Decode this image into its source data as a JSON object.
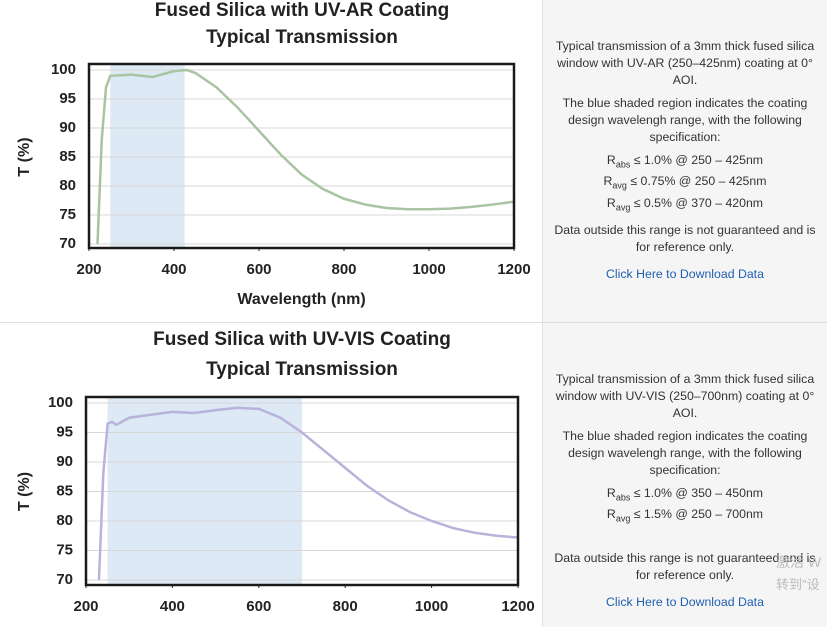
{
  "chart_data": [
    {
      "type": "line",
      "title": "Fused Silica with UV-AR Coating",
      "subtitle": "Typical Transmission",
      "y_label": "T (%)",
      "x_label": "Wavelength (nm)",
      "x": [
        220,
        230,
        240,
        250,
        300,
        350,
        400,
        430,
        450,
        500,
        550,
        600,
        650,
        700,
        750,
        800,
        850,
        900,
        950,
        1000,
        1050,
        1100,
        1150,
        1200
      ],
      "values": [
        70,
        88,
        97,
        99,
        99.2,
        98.8,
        99.8,
        100,
        99.5,
        97,
        93.5,
        89.5,
        85.5,
        82,
        79.5,
        77.8,
        76.8,
        76.2,
        76,
        76,
        76.1,
        76.4,
        76.8,
        77.3
      ],
      "color": "#a9c4a3",
      "shaded_region": [
        250,
        425
      ],
      "shade_color": "#dde9f5",
      "xlim": [
        200,
        1200
      ],
      "ylim": [
        70,
        100
      ],
      "xticks": [
        200,
        400,
        600,
        800,
        1000,
        1200
      ],
      "yticks": [
        70,
        75,
        80,
        85,
        90,
        95,
        100
      ],
      "grid": true
    },
    {
      "type": "line",
      "title": "Fused Silica with UV-VIS Coating",
      "subtitle": "Typical Transmission",
      "y_label": "T (%)",
      "x": [
        230,
        240,
        250,
        260,
        270,
        300,
        350,
        400,
        450,
        500,
        550,
        600,
        650,
        700,
        750,
        800,
        850,
        900,
        950,
        1000,
        1050,
        1100,
        1150,
        1200
      ],
      "values": [
        70,
        88,
        96.5,
        96.8,
        96.3,
        97.5,
        98,
        98.5,
        98.3,
        98.8,
        99.2,
        99,
        97.5,
        95,
        92,
        89,
        86,
        83.5,
        81.5,
        80,
        78.8,
        78,
        77.5,
        77.2
      ],
      "color": "#b9b2da",
      "shaded_region": [
        250,
        700
      ],
      "shade_color": "#dde9f5",
      "xlim": [
        200,
        1200
      ],
      "ylim": [
        70,
        100
      ],
      "xticks": [
        200,
        400,
        600,
        800,
        1000,
        1200
      ],
      "yticks": [
        70,
        75,
        80,
        85,
        90,
        95,
        100
      ],
      "grid": true
    }
  ],
  "descriptions": [
    {
      "paragraphs": [
        "Typical transmission of a 3mm thick fused silica window with UV-AR (250–425nm) coating at 0° AOI.",
        "The blue shaded region indicates the coating design wavelengh range, with the following specification:"
      ],
      "specs": [
        {
          "symbol": "R",
          "sub": "abs",
          "text": "≤ 1.0% @ 250 – 425nm"
        },
        {
          "symbol": "R",
          "sub": "avg",
          "text": "≤ 0.75% @ 250 – 425nm"
        },
        {
          "symbol": "R",
          "sub": "avg",
          "text": "≤ 0.5% @ 370 – 420nm"
        }
      ],
      "note": "Data outside this range is not guaranteed and is for reference only.",
      "link": "Click Here to Download Data"
    },
    {
      "paragraphs": [
        "Typical transmission of a 3mm thick fused silica window with UV-VIS (250–700nm) coating at 0° AOI.",
        "The blue shaded region indicates the coating design wavelengh range, with the following specification:"
      ],
      "specs": [
        {
          "symbol": "R",
          "sub": "abs",
          "text": "≤ 1.0% @ 350 – 450nm"
        },
        {
          "symbol": "R",
          "sub": "avg",
          "text": "≤ 1.5% @ 250 – 700nm"
        }
      ],
      "note": "Data outside this range is not guaranteed and is for reference only.",
      "link": "Click Here to Download Data"
    }
  ],
  "watermark": [
    "激活 W",
    "转到\"设"
  ]
}
